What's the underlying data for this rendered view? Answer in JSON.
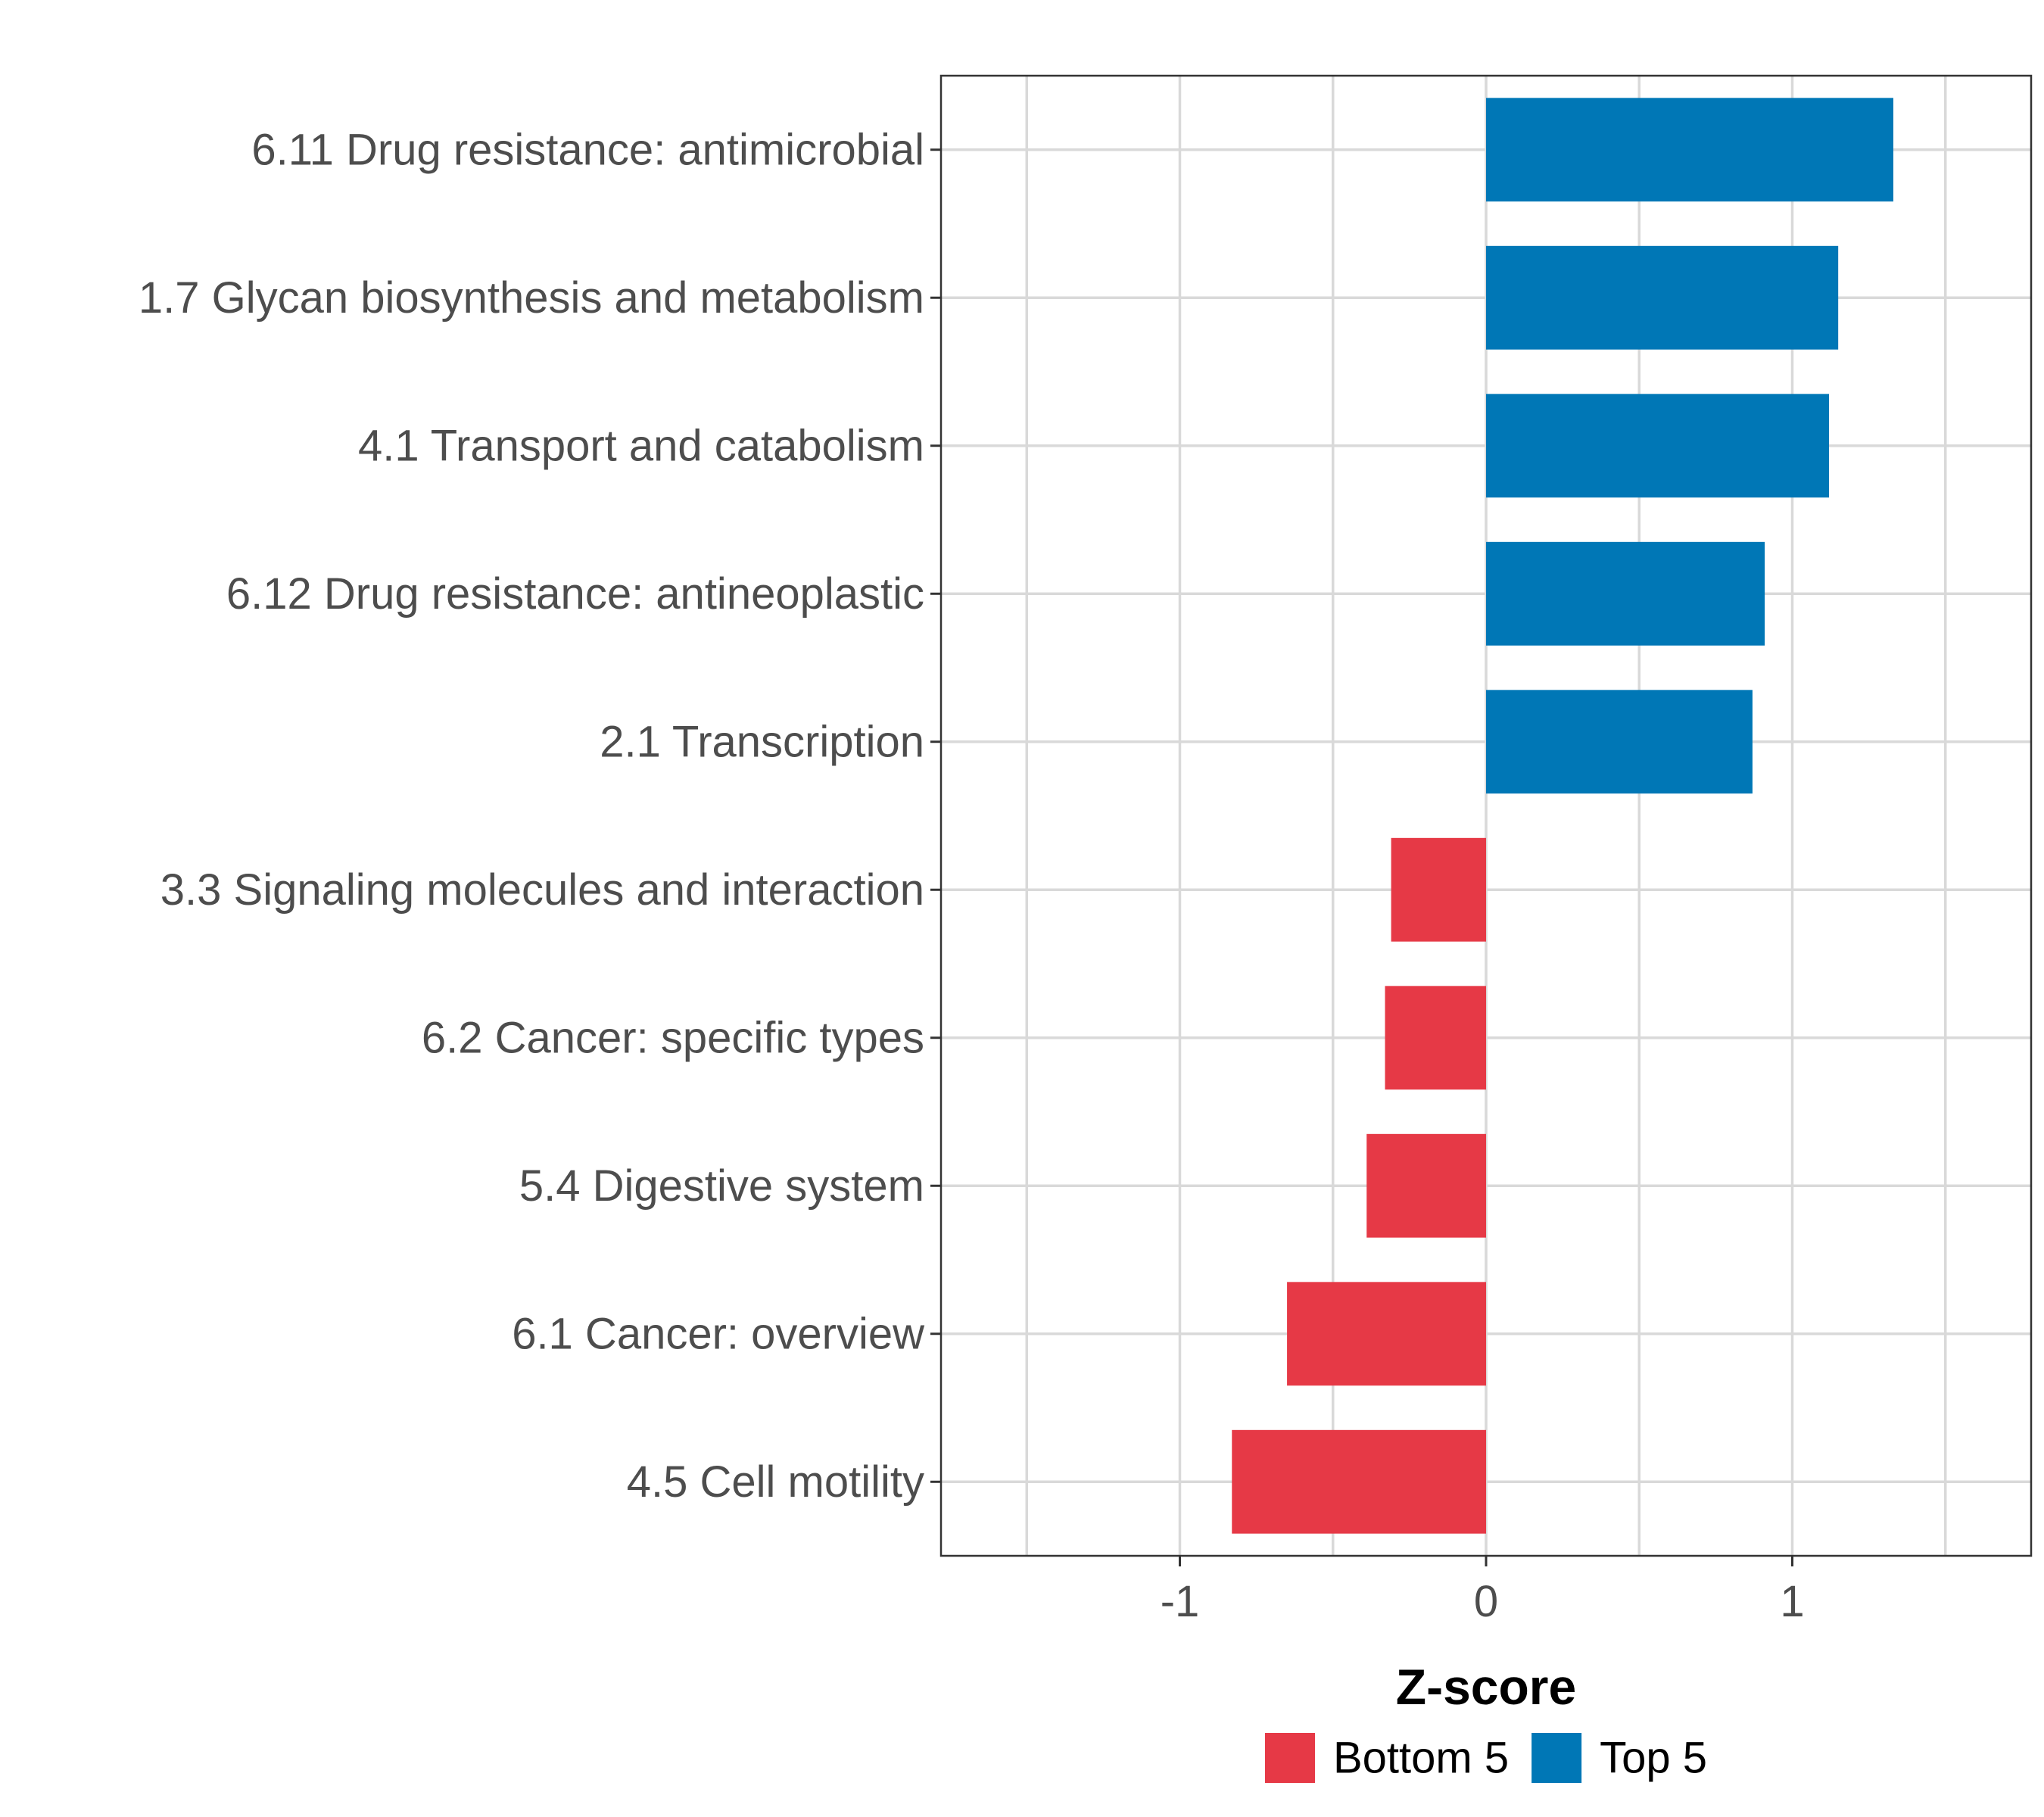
{
  "chart_data": {
    "type": "bar",
    "orientation": "horizontal",
    "title": "",
    "xlabel": "Z-score",
    "ylabel": "",
    "xlim": [
      -1.78,
      1.78
    ],
    "xticks": [
      -1,
      0,
      1
    ],
    "xtick_labels": [
      "-1",
      "0",
      "1"
    ],
    "grid": true,
    "categories": [
      "6.11 Drug resistance: antimicrobial",
      "1.7 Glycan biosynthesis and metabolism",
      "4.1 Transport and catabolism",
      "6.12 Drug resistance: antineoplastic",
      "2.1 Transcription",
      "3.3 Signaling molecules and interaction",
      "6.2 Cancer: specific types",
      "5.4 Digestive system",
      "6.1 Cancer: overview",
      "4.5 Cell motility"
    ],
    "values": [
      1.33,
      1.15,
      1.12,
      0.91,
      0.87,
      -0.31,
      -0.33,
      -0.39,
      -0.65,
      -0.83
    ],
    "groups": [
      "Top 5",
      "Top 5",
      "Top 5",
      "Top 5",
      "Top 5",
      "Bottom 5",
      "Bottom 5",
      "Bottom 5",
      "Bottom 5",
      "Bottom 5"
    ],
    "legend": {
      "position": "bottom",
      "entries": [
        {
          "label": "Bottom 5",
          "color": "#e63946"
        },
        {
          "label": "Top 5",
          "color": "#0077b6"
        }
      ]
    }
  }
}
